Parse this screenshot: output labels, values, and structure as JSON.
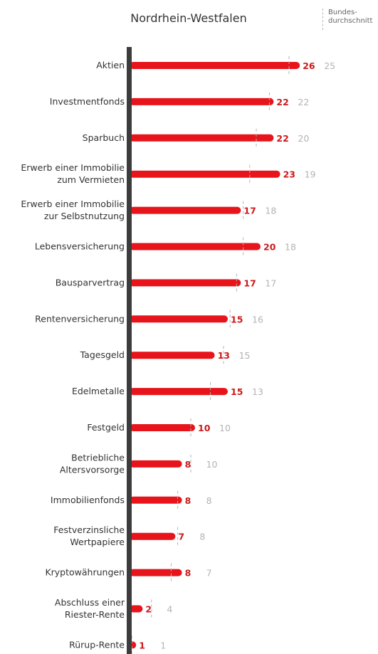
{
  "chart_data": {
    "type": "bar",
    "title": "Nordrhein-Westfalen",
    "legend": "Bundes-\ndurchschnitt",
    "xlim": [
      0,
      30
    ],
    "categories": [
      "Aktien",
      "Investmentfonds",
      "Sparbuch",
      "Erwerb einer Immobilie zum Vermieten",
      "Erwerb einer Immobilie zur Selbstnutzung",
      "Lebensversicherung",
      "Bausparvertrag",
      "Rentenversicherung",
      "Tagesgeld",
      "Edelmetalle",
      "Festgeld",
      "Betriebliche Altersvorsorge",
      "Immobilienfonds",
      "Festverzinsliche Wertpapiere",
      "Kryptowährungen",
      "Abschluss einer Riester-Rente",
      "Rürup-Rente"
    ],
    "label_lines": [
      [
        "Aktien"
      ],
      [
        "Investmentfonds"
      ],
      [
        "Sparbuch"
      ],
      [
        "Erwerb einer Immobilie",
        "zum Vermieten"
      ],
      [
        "Erwerb einer Immobilie",
        "zur Selbstnutzung"
      ],
      [
        "Lebensversicherung"
      ],
      [
        "Bausparvertrag"
      ],
      [
        "Rentenversicherung"
      ],
      [
        "Tagesgeld"
      ],
      [
        "Edelmetalle"
      ],
      [
        "Festgeld"
      ],
      [
        "Betriebliche",
        "Altersvorsorge"
      ],
      [
        "Immobilienfonds"
      ],
      [
        "Festverzinsliche",
        "Wertpapiere"
      ],
      [
        "Kryptowährungen"
      ],
      [
        "Abschluss einer",
        "Riester-Rente"
      ],
      [
        "Rürup-Rente"
      ]
    ],
    "series": [
      {
        "values": [
          26,
          22,
          22,
          23,
          17,
          20,
          17,
          15,
          13,
          15,
          10,
          8,
          8,
          7,
          8,
          2,
          1
        ]
      },
      {
        "values": [
          25,
          22,
          20,
          19,
          18,
          18,
          17,
          16,
          15,
          13,
          10,
          10,
          8,
          8,
          7,
          4,
          1
        ]
      }
    ],
    "colors": {
      "bar": "#e8141b",
      "value": "#cc1a1a",
      "reference": "#b3b3b3",
      "axis": "#3c3c3c",
      "label": "#333333"
    }
  }
}
